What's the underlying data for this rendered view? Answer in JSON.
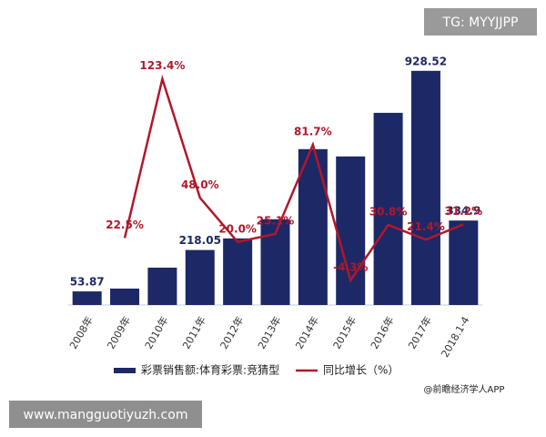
{
  "chart_data": {
    "type": "bar_line",
    "categories": [
      "2008年",
      "2009年",
      "2010年",
      "2011年",
      "2012年",
      "2013年",
      "2014年",
      "2015年",
      "2016年",
      "2017年",
      "2018.1-4"
    ],
    "series": [
      {
        "name": "彩票销售额:体育彩票:竞猜型",
        "type": "bar",
        "color": "#1d2866",
        "values": [
          53.87,
          65,
          148,
          218.05,
          264,
          340,
          618,
          589,
          762,
          928.52,
          334.9
        ],
        "value_labels": [
          "53.87",
          null,
          null,
          "218.05",
          null,
          null,
          null,
          null,
          null,
          "928.52",
          "334.9"
        ]
      },
      {
        "name": "同比增长（%）",
        "type": "line",
        "axis": "y2",
        "color": "#b0182a",
        "values": [
          null,
          22.5,
          123.4,
          48.0,
          20.0,
          25.1,
          81.7,
          -4.3,
          30.8,
          21.4,
          31.2
        ],
        "value_labels": [
          null,
          "22.5%",
          "123.4%",
          "48.0%",
          "20.0%",
          "25.1%",
          "81.7%",
          "-4.3%",
          "30.8%",
          "21.4%",
          "31.2%"
        ]
      }
    ],
    "ylim": [
      0,
      1000
    ],
    "y2lim": [
      -20,
      140
    ],
    "grid": false,
    "legend": "bottom",
    "source": "@前瞻经济学人APP"
  },
  "watermark": "TG: MYYJJPP",
  "footer_url": "www.mangguotiyuzh.com"
}
